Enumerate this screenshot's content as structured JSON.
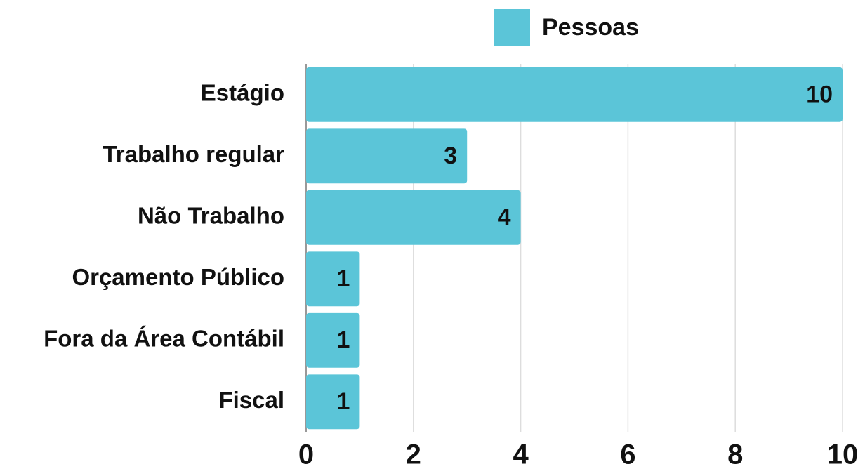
{
  "chart_data": {
    "type": "bar",
    "orientation": "horizontal",
    "categories": [
      "Estágio",
      "Trabalho regular",
      "Não Trabalho",
      "Orçamento Público",
      "Fora da Área Contábil",
      "Fiscal"
    ],
    "series": [
      {
        "name": "Pessoas",
        "color": "#5bc5d8",
        "values": [
          10,
          3,
          4,
          1,
          1,
          1
        ]
      }
    ],
    "xlim": [
      0,
      10
    ],
    "xticks": [
      0,
      2,
      4,
      6,
      8,
      10
    ],
    "grid": true,
    "legend": "top"
  }
}
